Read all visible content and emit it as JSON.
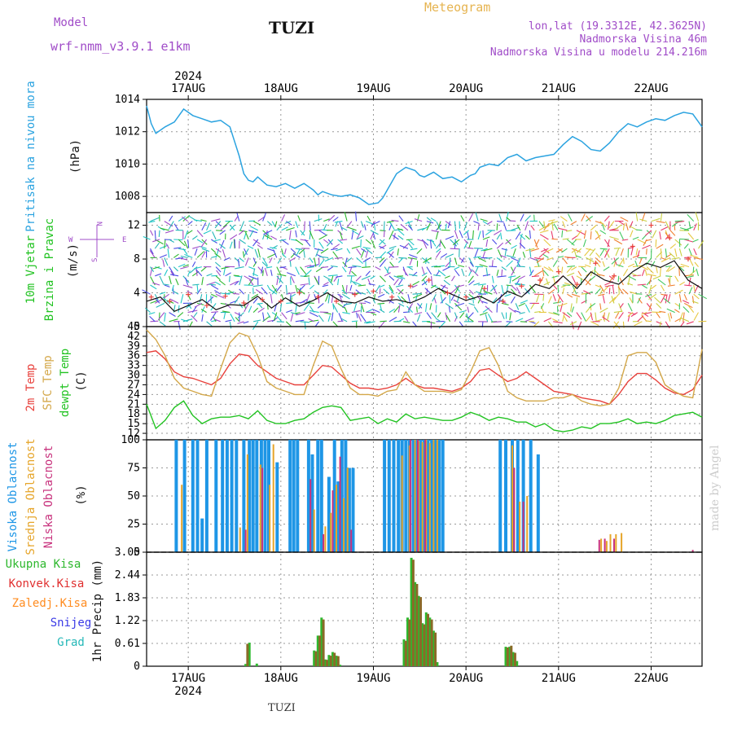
{
  "header": {
    "model_label": "Model",
    "model_name": "wrf-nmm_v3.9.1 e1km",
    "station": "TUZI",
    "title": "Meteogram",
    "coords": "lon,lat (19.3312E, 42.3625N)",
    "elevation": "Nadmorska Visina 46m",
    "model_elevation": "Nadmorska Visina u modelu 214.216m",
    "year": "2024",
    "footer_station": "TUZI",
    "watermark": "made by Angel"
  },
  "colors": {
    "pressure": "#2ba3e0",
    "temp2m": "#e8413c",
    "sfc": "#d4a84a",
    "dewpt": "#22c322",
    "high_cloud": "#1e96e6",
    "mid_cloud": "#e6a52a",
    "low_cloud": "#c8327d",
    "precip_total": "#2eb82e",
    "precip_conv": "#e03030",
    "precip_frozen": "#ff8c20",
    "snow": "#3a3ae6",
    "hail": "#25b8b8",
    "purple": "#a04cc8",
    "orange_title": "#e6b450"
  },
  "chart_data": [
    {
      "type": "line",
      "panel": "pressure",
      "ylabel": "Pritisak na nivou mora",
      "unit": "(hPa)",
      "x_dates": [
        "17AUG",
        "18AUG",
        "19AUG",
        "20AUG",
        "21AUG",
        "22AUG"
      ],
      "x_range_days": [
        16.55,
        22.55
      ],
      "ylim": [
        1007,
        1014
      ],
      "yticks": [
        1008,
        1010,
        1012,
        1014
      ],
      "series": [
        {
          "x": [
            16.55,
            16.6,
            16.65,
            16.75,
            16.85,
            16.95,
            17.05,
            17.15,
            17.25,
            17.35,
            17.45,
            17.55,
            17.6,
            17.65,
            17.7,
            17.75,
            17.85,
            17.95,
            18.05,
            18.15,
            18.25,
            18.35,
            18.4,
            18.45,
            18.55,
            18.65,
            18.75,
            18.85,
            18.95,
            19.05,
            19.1,
            19.15,
            19.25,
            19.35,
            19.45,
            19.5,
            19.55,
            19.65,
            19.75,
            19.85,
            19.95,
            20.05,
            20.1,
            20.15,
            20.25,
            20.35,
            20.45,
            20.55,
            20.65,
            20.75,
            20.85,
            20.95,
            21.05,
            21.15,
            21.25,
            21.35,
            21.45,
            21.55,
            21.65,
            21.75,
            21.85,
            21.95,
            22.05,
            22.15,
            22.25,
            22.35,
            22.45,
            22.55
          ],
          "values": [
            1013.6,
            1012.5,
            1011.9,
            1012.3,
            1012.6,
            1013.4,
            1013.0,
            1012.8,
            1012.6,
            1012.7,
            1012.3,
            1010.5,
            1009.4,
            1009.0,
            1008.9,
            1009.2,
            1008.7,
            1008.6,
            1008.8,
            1008.5,
            1008.8,
            1008.4,
            1008.1,
            1008.3,
            1008.1,
            1008.0,
            1008.1,
            1007.9,
            1007.5,
            1007.6,
            1007.9,
            1008.4,
            1009.4,
            1009.8,
            1009.6,
            1009.3,
            1009.2,
            1009.5,
            1009.1,
            1009.2,
            1008.9,
            1009.3,
            1009.4,
            1009.8,
            1010.0,
            1009.9,
            1010.4,
            1010.6,
            1010.2,
            1010.4,
            1010.5,
            1010.6,
            1011.2,
            1011.7,
            1011.4,
            1010.9,
            1010.8,
            1011.3,
            1012.0,
            1012.5,
            1012.3,
            1012.6,
            1012.8,
            1012.7,
            1013.0,
            1013.2,
            1013.1,
            1012.3
          ]
        }
      ]
    },
    {
      "type": "line",
      "panel": "wind",
      "ylabel": "10m Vjetar",
      "ylabel2": "Brzina i Pravac",
      "unit": "(m/s)",
      "compass": {
        "n": "N",
        "w": "W",
        "e": "E",
        "s": "S"
      },
      "ylim": [
        0,
        13.5
      ],
      "yticks": [
        0,
        4,
        8,
        12
      ],
      "speed": {
        "x": [
          16.55,
          16.7,
          16.85,
          17.0,
          17.15,
          17.3,
          17.45,
          17.6,
          17.75,
          17.9,
          18.05,
          18.2,
          18.35,
          18.5,
          18.65,
          18.8,
          18.95,
          19.1,
          19.25,
          19.4,
          19.55,
          19.7,
          19.85,
          20.0,
          20.15,
          20.3,
          20.45,
          20.6,
          20.75,
          20.9,
          21.05,
          21.2,
          21.35,
          21.5,
          21.65,
          21.8,
          21.95,
          22.1,
          22.25,
          22.4,
          22.55
        ],
        "values": [
          3.0,
          3.5,
          1.8,
          2.5,
          3.2,
          2.0,
          2.6,
          2.5,
          3.6,
          2.2,
          3.4,
          2.4,
          3.1,
          4.0,
          3.0,
          2.8,
          3.5,
          3.0,
          3.2,
          2.8,
          3.5,
          4.5,
          3.8,
          3.1,
          3.6,
          2.8,
          4.2,
          3.5,
          5.0,
          4.5,
          6.0,
          4.5,
          6.5,
          5.5,
          5.0,
          6.5,
          7.5,
          7.0,
          7.8,
          5.5,
          4.5
        ]
      },
      "gust": {
        "x": [
          16.6,
          16.8,
          17.0,
          17.2,
          17.4,
          17.6,
          17.8,
          18.0,
          18.2,
          18.4,
          18.6,
          18.8,
          19.0,
          19.2,
          19.4,
          19.6,
          19.8,
          20.0,
          20.2,
          20.4,
          20.6,
          20.8,
          21.0,
          21.2,
          21.4,
          21.6,
          21.8,
          22.0,
          22.2,
          22.4
        ],
        "values": [
          3.5,
          3.0,
          3.8,
          2.5,
          3.6,
          2.8,
          3.2,
          3.0,
          4.0,
          3.5,
          3.0,
          3.8,
          4.2,
          3.5,
          4.8,
          5.5,
          4.0,
          3.5,
          4.5,
          3.0,
          4.8,
          5.5,
          6.5,
          5.0,
          7.5,
          6.0,
          9.5,
          12.0,
          10.5,
          8.0
        ]
      }
    },
    {
      "type": "line",
      "panel": "temperature",
      "ylabel": "2m Temp",
      "ylabel2": "SFC Temp",
      "ylabel3": "dewpt Temp",
      "unit": "(C)",
      "ylim": [
        10,
        45
      ],
      "yticks": [
        12,
        15,
        18,
        21,
        24,
        27,
        30,
        33,
        36,
        39,
        42,
        45
      ],
      "series": [
        {
          "name": "2m Temp",
          "x": [
            16.55,
            16.65,
            16.75,
            16.85,
            16.95,
            17.05,
            17.15,
            17.25,
            17.35,
            17.45,
            17.55,
            17.65,
            17.75,
            17.85,
            17.95,
            18.05,
            18.15,
            18.25,
            18.35,
            18.45,
            18.55,
            18.65,
            18.75,
            18.85,
            18.95,
            19.05,
            19.15,
            19.25,
            19.35,
            19.45,
            19.55,
            19.65,
            19.75,
            19.85,
            19.95,
            20.05,
            20.15,
            20.25,
            20.35,
            20.45,
            20.55,
            20.65,
            20.75,
            20.85,
            20.95,
            21.05,
            21.15,
            21.25,
            21.35,
            21.45,
            21.55,
            21.65,
            21.75,
            21.85,
            21.95,
            22.05,
            22.15,
            22.25,
            22.35,
            22.45,
            22.55
          ],
          "values": [
            37,
            37.5,
            35,
            31,
            29.5,
            29,
            28,
            27,
            29,
            33.5,
            36.5,
            36,
            33,
            31,
            29,
            28,
            27,
            27,
            30,
            33,
            32.5,
            30,
            27.5,
            26,
            26,
            25.5,
            26,
            27,
            29,
            27,
            26,
            26,
            25.5,
            25,
            26,
            28,
            31.5,
            32,
            30,
            28,
            29,
            31,
            29,
            27,
            25,
            24.5,
            24,
            23,
            22.5,
            22,
            21,
            24,
            28,
            30.5,
            30.5,
            28.5,
            26,
            24.5,
            24,
            25.5,
            30
          ]
        },
        {
          "name": "SFC Temp",
          "x": [
            16.55,
            16.65,
            16.75,
            16.85,
            16.95,
            17.05,
            17.15,
            17.25,
            17.35,
            17.45,
            17.55,
            17.65,
            17.75,
            17.85,
            17.95,
            18.05,
            18.15,
            18.25,
            18.35,
            18.45,
            18.55,
            18.65,
            18.75,
            18.85,
            18.95,
            19.05,
            19.15,
            19.25,
            19.35,
            19.45,
            19.55,
            19.65,
            19.75,
            19.85,
            19.95,
            20.05,
            20.15,
            20.25,
            20.35,
            20.45,
            20.55,
            20.65,
            20.75,
            20.85,
            20.95,
            21.05,
            21.15,
            21.25,
            21.35,
            21.45,
            21.55,
            21.65,
            21.75,
            21.85,
            21.95,
            22.05,
            22.15,
            22.25,
            22.35,
            22.45,
            22.55
          ],
          "values": [
            44,
            41,
            36,
            29,
            26,
            25,
            24,
            23.5,
            32,
            40,
            43,
            42,
            36,
            28,
            26,
            25,
            24,
            24,
            33,
            40.5,
            39,
            32,
            26,
            24,
            24,
            23.5,
            25,
            25.5,
            31,
            27,
            25,
            25,
            25,
            24.5,
            25.5,
            31,
            37.5,
            38.5,
            33,
            25,
            23,
            22,
            22,
            22,
            23,
            23,
            24,
            22,
            21,
            20.5,
            21,
            26,
            36,
            37,
            37,
            34,
            27,
            25,
            23.5,
            23,
            38
          ]
        },
        {
          "name": "dewpt Temp",
          "x": [
            16.55,
            16.65,
            16.75,
            16.85,
            16.95,
            17.05,
            17.15,
            17.25,
            17.35,
            17.45,
            17.55,
            17.65,
            17.75,
            17.85,
            17.95,
            18.05,
            18.15,
            18.25,
            18.35,
            18.45,
            18.55,
            18.65,
            18.75,
            18.85,
            18.95,
            19.05,
            19.15,
            19.25,
            19.35,
            19.45,
            19.55,
            19.65,
            19.75,
            19.85,
            19.95,
            20.05,
            20.15,
            20.25,
            20.35,
            20.45,
            20.55,
            20.65,
            20.75,
            20.85,
            20.95,
            21.05,
            21.15,
            21.25,
            21.35,
            21.45,
            21.55,
            21.65,
            21.75,
            21.85,
            21.95,
            22.05,
            22.15,
            22.25,
            22.35,
            22.45,
            22.55
          ],
          "values": [
            21,
            13.5,
            16,
            20,
            22,
            17.5,
            15,
            16.5,
            17,
            17,
            17.5,
            16.5,
            19,
            16,
            15,
            15,
            16,
            16.5,
            18.5,
            20,
            20.5,
            20,
            16,
            16.5,
            17,
            15,
            16.5,
            15.5,
            18,
            16.5,
            17,
            16.5,
            16,
            16,
            17,
            18.5,
            17.5,
            16,
            17,
            16.5,
            15.5,
            15.5,
            14,
            15,
            13,
            12.5,
            13,
            14,
            13.5,
            15,
            15,
            15.5,
            16.5,
            15,
            15.5,
            15,
            16,
            17.5,
            18,
            18.5,
            17
          ]
        }
      ]
    },
    {
      "type": "bar",
      "panel": "clouds",
      "ylabel": "Visoka Oblacnost",
      "ylabel2": "Srednja Oblacnost",
      "ylabel3": "Niska Oblacnost",
      "unit": "(%)",
      "ylim": [
        0,
        100
      ],
      "yticks": [
        0,
        25,
        50,
        75,
        100
      ],
      "high_cloud": {
        "x": [
          16.87,
          16.96,
          17.05,
          17.1,
          17.15,
          17.2,
          17.3,
          17.37,
          17.42,
          17.47,
          17.52,
          17.6,
          17.66,
          17.7,
          17.74,
          17.79,
          17.83,
          17.87,
          17.96,
          18.1,
          18.14,
          18.18,
          18.3,
          18.34,
          18.4,
          18.44,
          18.52,
          18.58,
          18.62,
          18.66,
          18.7,
          18.74,
          18.78,
          19.12,
          19.17,
          19.22,
          19.27,
          19.31,
          19.35,
          19.39,
          19.43,
          19.47,
          19.51,
          19.55,
          19.59,
          19.63,
          19.67,
          19.71,
          19.75,
          20.37,
          20.43,
          20.5,
          20.56,
          20.62,
          20.7,
          20.78
        ],
        "values": [
          100,
          100,
          100,
          100,
          30,
          100,
          100,
          100,
          100,
          100,
          100,
          100,
          100,
          100,
          100,
          100,
          100,
          100,
          80,
          100,
          100,
          100,
          100,
          87,
          100,
          100,
          67,
          100,
          63,
          100,
          100,
          75,
          75,
          100,
          100,
          100,
          100,
          100,
          100,
          100,
          100,
          100,
          100,
          100,
          100,
          100,
          100,
          100,
          100,
          100,
          100,
          100,
          100,
          100,
          100,
          87
        ]
      },
      "mid_cloud": {
        "x": [
          16.93,
          17.56,
          17.64,
          17.78,
          17.88,
          17.92,
          18.36,
          18.48,
          18.54,
          18.6,
          18.68,
          18.72,
          19.31,
          19.39,
          19.45,
          19.49,
          19.53,
          19.57,
          19.61,
          19.65,
          19.69,
          20.5,
          20.58,
          20.66,
          21.46,
          21.52,
          21.56,
          21.62,
          21.68
        ],
        "values": [
          60,
          22,
          87,
          78,
          60,
          96,
          38,
          23,
          35,
          60,
          48,
          75,
          86,
          95,
          100,
          99,
          98,
          100,
          97,
          100,
          100,
          95,
          45,
          50,
          12,
          10,
          16,
          16,
          17
        ]
      },
      "low_cloud": {
        "x": [
          17.62,
          17.8,
          18.32,
          18.46,
          18.56,
          18.64,
          18.76,
          19.4,
          19.48,
          19.56,
          20.52,
          20.62,
          21.44,
          21.5,
          21.6,
          22.45
        ],
        "values": [
          20,
          75,
          65,
          16,
          55,
          85,
          20,
          100,
          100,
          100,
          75,
          45,
          11,
          12,
          12,
          2
        ]
      }
    },
    {
      "type": "bar",
      "panel": "precipitation",
      "ylabel": "1hr Precip",
      "unit": "(mm)",
      "ylim": [
        0,
        3.05
      ],
      "yticks": [
        0,
        0.61,
        1.22,
        1.83,
        2.44,
        3.05
      ],
      "legend": [
        "Ukupna Kisa",
        "Konvek.Kisa",
        "Zaledj.Kisa",
        "Snijeg",
        "Grad"
      ],
      "total": {
        "x": [
          17.62,
          17.66,
          17.74,
          18.36,
          18.4,
          18.44,
          18.48,
          18.52,
          18.56,
          18.6,
          18.64,
          19.33,
          19.37,
          19.41,
          19.45,
          19.49,
          19.53,
          19.57,
          19.61,
          19.65,
          19.69,
          20.43,
          20.47,
          20.51,
          20.55
        ],
        "values": [
          0.06,
          0.63,
          0.07,
          0.42,
          0.82,
          1.3,
          0.18,
          0.3,
          0.38,
          0.28,
          0.04,
          0.72,
          1.3,
          2.9,
          2.25,
          1.88,
          1.15,
          1.44,
          1.3,
          0.95,
          0.11,
          0.52,
          0.52,
          0.38,
          0.14
        ]
      },
      "convective": {
        "x": [
          17.64,
          18.38,
          18.42,
          18.46,
          18.5,
          18.54,
          18.58,
          18.62,
          19.35,
          19.39,
          19.43,
          19.47,
          19.51,
          19.55,
          19.59,
          19.63,
          19.67,
          20.45,
          20.49,
          20.53
        ],
        "values": [
          0.6,
          0.4,
          0.82,
          1.25,
          0.17,
          0.28,
          0.36,
          0.27,
          0.68,
          1.25,
          2.85,
          2.2,
          1.85,
          1.12,
          1.4,
          1.25,
          0.9,
          0.5,
          0.55,
          0.36
        ]
      }
    }
  ]
}
